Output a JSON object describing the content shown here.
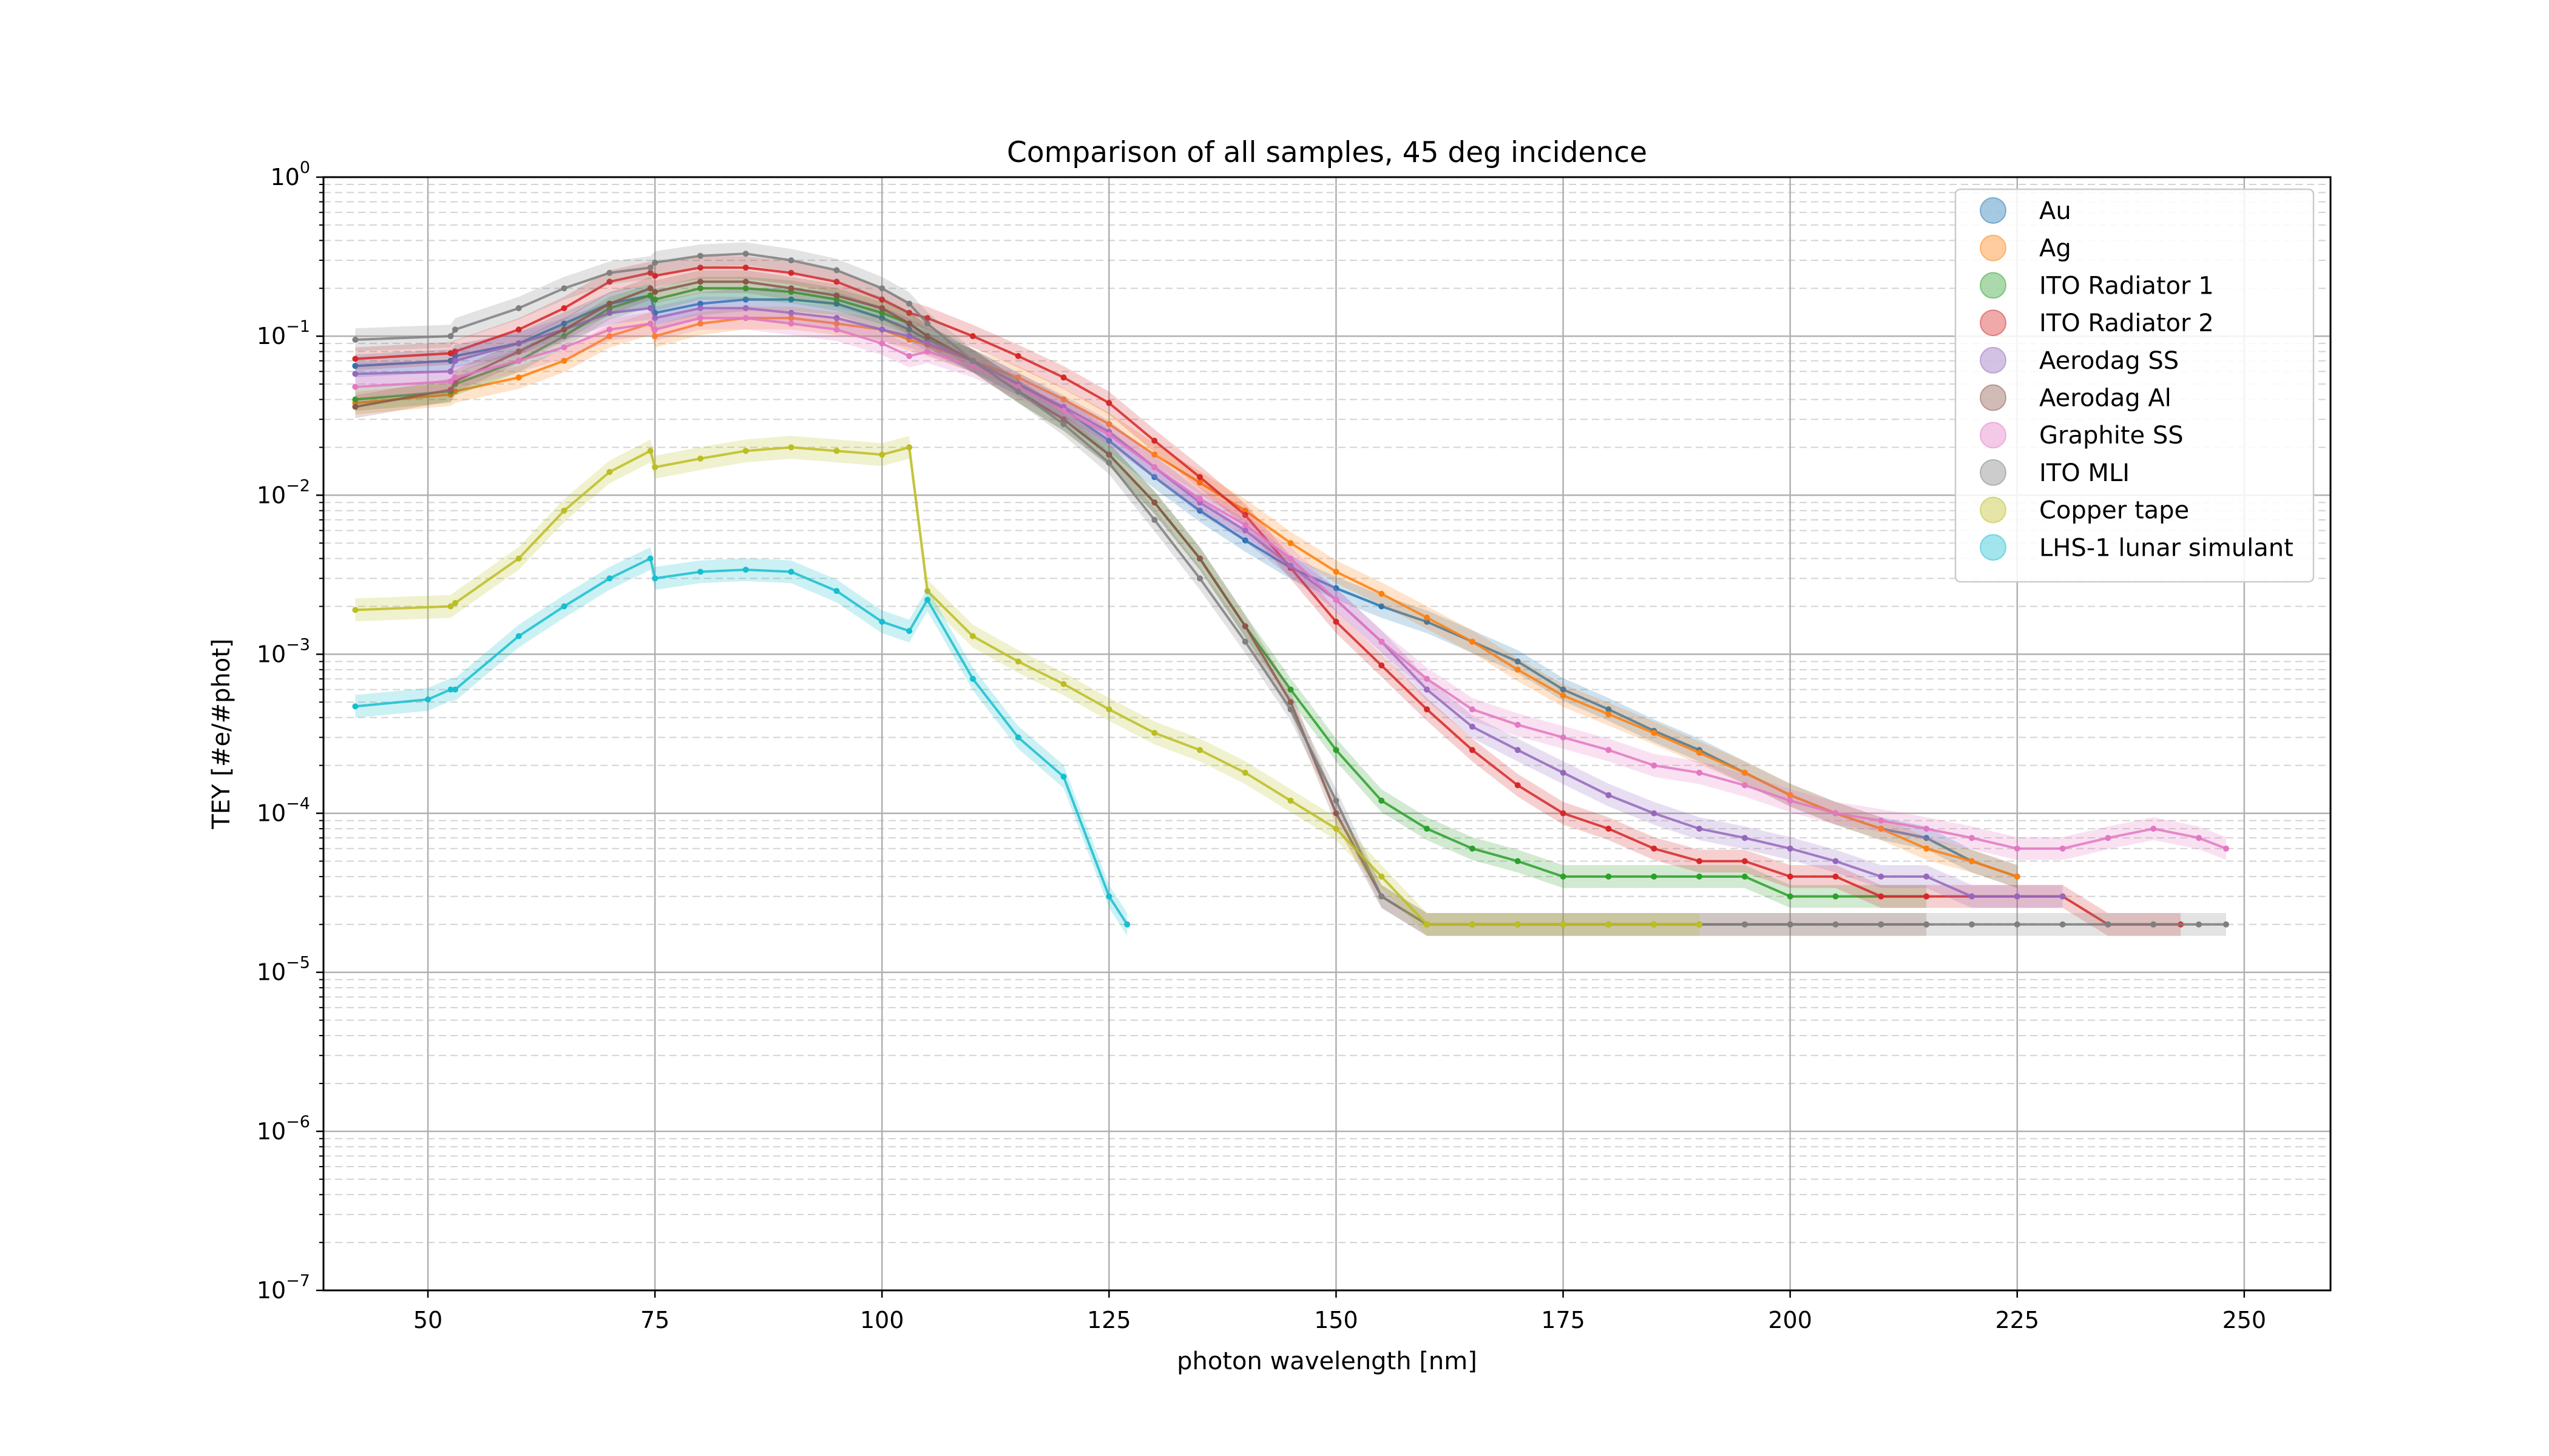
{
  "chart_data": {
    "type": "scatter",
    "title": "Comparison of all samples, 45 deg incidence",
    "xlabel": "photon wavelength [nm]",
    "ylabel": "TEY [#e/#phot]",
    "xlim": [
      38.5,
      259.5
    ],
    "ylim_log10": [
      -7,
      0
    ],
    "y_scale": "log",
    "x_ticks": [
      50,
      75,
      100,
      125,
      150,
      175,
      200,
      225,
      250
    ],
    "y_ticks": [
      {
        "base": "10",
        "exp": "0",
        "value": 0
      },
      {
        "base": "10",
        "exp": "−1",
        "value": -1
      },
      {
        "base": "10",
        "exp": "−2",
        "value": -2
      },
      {
        "base": "10",
        "exp": "−3",
        "value": -3
      },
      {
        "base": "10",
        "exp": "−4",
        "value": -4
      },
      {
        "base": "10",
        "exp": "−5",
        "value": -5
      },
      {
        "base": "10",
        "exp": "−6",
        "value": -6
      },
      {
        "base": "10",
        "exp": "−7",
        "value": -7
      }
    ],
    "grid": true,
    "legend_position": "top-right",
    "series": [
      {
        "name": "Au",
        "color": "#1f77b4",
        "x": [
          42,
          52.5,
          53,
          60,
          65,
          70,
          74.5,
          75,
          80,
          85,
          90,
          95,
          100,
          103,
          105,
          110,
          115,
          120,
          125,
          130,
          135,
          140,
          145,
          150,
          155,
          160,
          165,
          170,
          175,
          180,
          185,
          190,
          195,
          200,
          205,
          210,
          215,
          220,
          225
        ],
        "y": [
          0.065,
          0.07,
          0.075,
          0.09,
          0.12,
          0.16,
          0.18,
          0.14,
          0.16,
          0.17,
          0.17,
          0.16,
          0.13,
          0.11,
          0.095,
          0.07,
          0.05,
          0.035,
          0.022,
          0.013,
          0.008,
          0.0052,
          0.0035,
          0.0026,
          0.002,
          0.0016,
          0.0012,
          0.0009,
          0.0006,
          0.00045,
          0.00033,
          0.00025,
          0.00018,
          0.00013,
          0.0001,
          8e-05,
          7e-05,
          5e-05,
          4e-05
        ]
      },
      {
        "name": "Ag",
        "color": "#ff7f0e",
        "x": [
          42,
          52.5,
          53,
          60,
          65,
          70,
          74.5,
          75,
          80,
          85,
          90,
          95,
          100,
          103,
          105,
          110,
          115,
          120,
          125,
          130,
          135,
          140,
          145,
          150,
          155,
          160,
          165,
          170,
          175,
          180,
          185,
          190,
          195,
          200,
          205,
          210,
          215,
          220,
          225
        ],
        "y": [
          0.038,
          0.043,
          0.045,
          0.055,
          0.07,
          0.1,
          0.12,
          0.1,
          0.12,
          0.13,
          0.13,
          0.12,
          0.11,
          0.095,
          0.088,
          0.07,
          0.055,
          0.04,
          0.028,
          0.018,
          0.012,
          0.008,
          0.005,
          0.0033,
          0.0024,
          0.0017,
          0.0012,
          0.0008,
          0.00055,
          0.00042,
          0.00032,
          0.00024,
          0.00018,
          0.00013,
          0.0001,
          8e-05,
          6e-05,
          5e-05,
          4e-05
        ]
      },
      {
        "name": "ITO Radiator 1",
        "color": "#2ca02c",
        "x": [
          42,
          52.5,
          53,
          60,
          65,
          70,
          74.5,
          75,
          80,
          85,
          90,
          95,
          100,
          103,
          105,
          110,
          115,
          120,
          125,
          130,
          135,
          140,
          145,
          150,
          155,
          160,
          165,
          170,
          175,
          180,
          185,
          190,
          195,
          200,
          205,
          210,
          215
        ],
        "y": [
          0.04,
          0.045,
          0.05,
          0.07,
          0.1,
          0.15,
          0.18,
          0.17,
          0.2,
          0.2,
          0.19,
          0.17,
          0.14,
          0.12,
          0.1,
          0.07,
          0.045,
          0.03,
          0.018,
          0.009,
          0.004,
          0.0015,
          0.0006,
          0.00025,
          0.00012,
          8e-05,
          6e-05,
          5e-05,
          4e-05,
          4e-05,
          4e-05,
          4e-05,
          4e-05,
          3e-05,
          3e-05,
          3e-05,
          3e-05
        ]
      },
      {
        "name": "ITO Radiator 2",
        "color": "#d62728",
        "x": [
          42,
          52.5,
          53,
          60,
          65,
          70,
          74.5,
          75,
          80,
          85,
          90,
          95,
          100,
          103,
          105,
          110,
          115,
          120,
          125,
          130,
          135,
          140,
          145,
          150,
          155,
          160,
          165,
          170,
          175,
          180,
          185,
          190,
          195,
          200,
          205,
          210,
          215,
          220,
          225,
          230,
          235,
          240,
          243
        ],
        "y": [
          0.072,
          0.078,
          0.08,
          0.11,
          0.15,
          0.22,
          0.25,
          0.24,
          0.27,
          0.27,
          0.25,
          0.22,
          0.17,
          0.14,
          0.13,
          0.1,
          0.075,
          0.055,
          0.038,
          0.022,
          0.013,
          0.0075,
          0.0035,
          0.0016,
          0.00085,
          0.00045,
          0.00025,
          0.00015,
          0.0001,
          8e-05,
          6e-05,
          5e-05,
          5e-05,
          4e-05,
          4e-05,
          3e-05,
          3e-05,
          3e-05,
          3e-05,
          3e-05,
          2e-05,
          2e-05,
          2e-05
        ]
      },
      {
        "name": "Aerodag SS",
        "color": "#9467bd",
        "x": [
          42,
          52.5,
          53,
          60,
          65,
          70,
          74.5,
          75,
          80,
          85,
          90,
          95,
          100,
          103,
          105,
          110,
          115,
          120,
          125,
          130,
          135,
          140,
          145,
          150,
          155,
          160,
          165,
          170,
          175,
          180,
          185,
          190,
          195,
          200,
          205,
          210,
          215,
          220,
          225,
          230
        ],
        "y": [
          0.058,
          0.06,
          0.07,
          0.09,
          0.11,
          0.14,
          0.15,
          0.13,
          0.15,
          0.15,
          0.14,
          0.13,
          0.11,
          0.1,
          0.09,
          0.07,
          0.05,
          0.036,
          0.025,
          0.015,
          0.009,
          0.006,
          0.0036,
          0.0022,
          0.0012,
          0.0006,
          0.00035,
          0.00025,
          0.00018,
          0.00013,
          0.0001,
          8e-05,
          7e-05,
          6e-05,
          5e-05,
          4e-05,
          4e-05,
          3e-05,
          3e-05,
          3e-05
        ]
      },
      {
        "name": "Aerodag Al",
        "color": "#8c564b",
        "x": [
          42,
          52.5,
          53,
          60,
          65,
          70,
          74.5,
          75,
          80,
          85,
          90,
          95,
          100,
          103,
          105,
          110,
          115,
          120,
          125,
          130,
          135,
          140,
          145,
          150,
          155,
          160,
          165,
          170,
          175,
          180,
          185,
          190,
          195,
          200,
          205,
          210,
          215
        ],
        "y": [
          0.036,
          0.046,
          0.052,
          0.08,
          0.11,
          0.16,
          0.2,
          0.19,
          0.22,
          0.22,
          0.2,
          0.18,
          0.15,
          0.12,
          0.1,
          0.07,
          0.045,
          0.03,
          0.018,
          0.009,
          0.004,
          0.0015,
          0.0005,
          0.0001,
          3e-05,
          2e-05,
          2e-05,
          2e-05,
          2e-05,
          2e-05,
          2e-05,
          2e-05,
          2e-05,
          2e-05,
          2e-05,
          2e-05,
          2e-05
        ]
      },
      {
        "name": "Graphite SS",
        "color": "#e377c2",
        "x": [
          42,
          52.5,
          53,
          60,
          65,
          70,
          74.5,
          75,
          80,
          85,
          90,
          95,
          100,
          103,
          105,
          110,
          115,
          120,
          125,
          130,
          135,
          140,
          145,
          150,
          155,
          160,
          165,
          170,
          175,
          180,
          185,
          190,
          195,
          200,
          205,
          210,
          215,
          220,
          225,
          230,
          235,
          240,
          245,
          248
        ],
        "y": [
          0.048,
          0.052,
          0.055,
          0.07,
          0.085,
          0.11,
          0.12,
          0.11,
          0.13,
          0.13,
          0.12,
          0.11,
          0.09,
          0.075,
          0.08,
          0.065,
          0.048,
          0.034,
          0.024,
          0.015,
          0.0095,
          0.0065,
          0.004,
          0.0022,
          0.0012,
          0.0007,
          0.00045,
          0.00036,
          0.0003,
          0.00025,
          0.0002,
          0.00018,
          0.00015,
          0.00012,
          0.0001,
          9e-05,
          8e-05,
          7e-05,
          6e-05,
          6e-05,
          7e-05,
          8e-05,
          7e-05,
          6e-05
        ]
      },
      {
        "name": "ITO MLI",
        "color": "#7f7f7f",
        "x": [
          42,
          52.5,
          53,
          60,
          65,
          70,
          74.5,
          75,
          80,
          85,
          90,
          95,
          100,
          103,
          105,
          110,
          115,
          120,
          125,
          130,
          135,
          140,
          145,
          150,
          155,
          160,
          165,
          170,
          175,
          180,
          185,
          190,
          195,
          200,
          205,
          210,
          215,
          220,
          225,
          230,
          235,
          240,
          245,
          248
        ],
        "y": [
          0.095,
          0.1,
          0.11,
          0.15,
          0.2,
          0.25,
          0.27,
          0.29,
          0.32,
          0.33,
          0.3,
          0.26,
          0.2,
          0.16,
          0.12,
          0.07,
          0.045,
          0.028,
          0.016,
          0.007,
          0.003,
          0.0012,
          0.00045,
          0.00012,
          3e-05,
          2e-05,
          2e-05,
          2e-05,
          2e-05,
          2e-05,
          2e-05,
          2e-05,
          2e-05,
          2e-05,
          2e-05,
          2e-05,
          2e-05,
          2e-05,
          2e-05,
          2e-05,
          2e-05,
          2e-05,
          2e-05,
          2e-05
        ]
      },
      {
        "name": "Copper tape",
        "color": "#bcbd22",
        "x": [
          42,
          52.5,
          53,
          60,
          65,
          70,
          74.5,
          75,
          80,
          85,
          90,
          95,
          100,
          103,
          105,
          110,
          115,
          120,
          125,
          130,
          135,
          140,
          145,
          150,
          155,
          160,
          165,
          170,
          175,
          180,
          185,
          190
        ],
        "y": [
          0.0019,
          0.002,
          0.0021,
          0.004,
          0.008,
          0.014,
          0.019,
          0.015,
          0.017,
          0.019,
          0.02,
          0.019,
          0.018,
          0.02,
          0.0025,
          0.0013,
          0.0009,
          0.00065,
          0.00045,
          0.00032,
          0.00025,
          0.00018,
          0.00012,
          8e-05,
          4e-05,
          2e-05,
          2e-05,
          2e-05,
          2e-05,
          2e-05,
          2e-05,
          2e-05
        ]
      },
      {
        "name": "LHS-1 lunar simulant",
        "color": "#17becf",
        "x": [
          42,
          50,
          52.5,
          53,
          60,
          65,
          70,
          74.5,
          75,
          80,
          85,
          90,
          95,
          100,
          103,
          105,
          110,
          115,
          120,
          125,
          127
        ],
        "y": [
          0.00047,
          0.00052,
          0.0006,
          0.0006,
          0.0013,
          0.002,
          0.003,
          0.004,
          0.003,
          0.0033,
          0.0034,
          0.0033,
          0.0025,
          0.0016,
          0.0014,
          0.0022,
          0.0007,
          0.0003,
          0.00017,
          3e-05,
          2e-05
        ]
      }
    ]
  }
}
